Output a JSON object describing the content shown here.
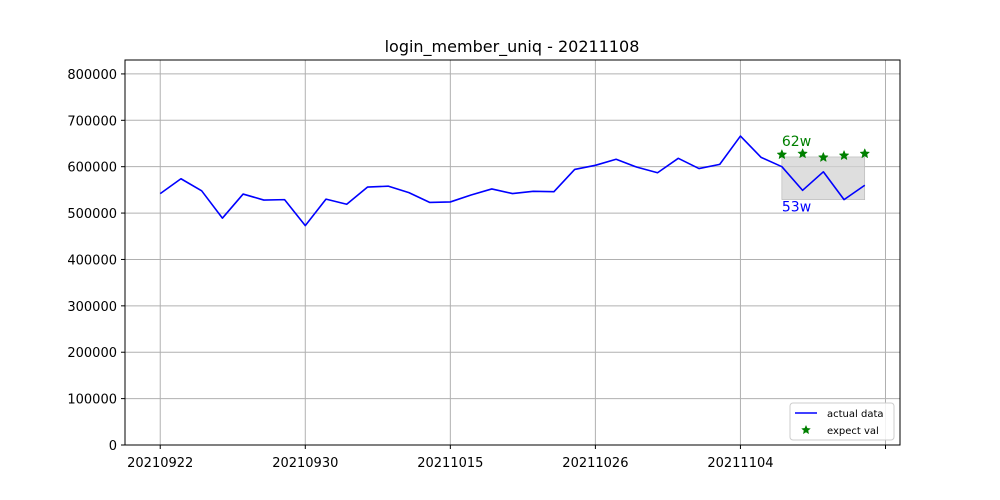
{
  "chart_data": {
    "type": "line",
    "title": "login_member_uniq - 20211108",
    "xlabel": "",
    "ylabel": "",
    "x_tick_labels": [
      "20210922",
      "20210930",
      "20211015",
      "20211026",
      "20211104",
      ""
    ],
    "x_tick_positions": [
      0,
      7,
      14,
      21,
      28,
      35
    ],
    "y_tick_labels": [
      "0",
      "100000",
      "200000",
      "300000",
      "400000",
      "500000",
      "600000",
      "700000",
      "800000"
    ],
    "ylim": [
      0,
      830000
    ],
    "xlim": [
      -1.7,
      35.7
    ],
    "grid": true,
    "legend_position": "lower right",
    "colors": {
      "actual": "#0000ff",
      "expect": "#008000",
      "band": "#d3d3d3",
      "grid": "#b0b0b0"
    },
    "series": [
      {
        "name": "actual data",
        "style": "line",
        "x": [
          0,
          1,
          2,
          3,
          4,
          5,
          6,
          7,
          8,
          9,
          10,
          11,
          12,
          13,
          14,
          15,
          16,
          17,
          18,
          19,
          20,
          21,
          22,
          23,
          24,
          25,
          26,
          27,
          28,
          29,
          30,
          31,
          32,
          33,
          34
        ],
        "values": [
          542000,
          574000,
          548000,
          489000,
          541000,
          528000,
          529000,
          473000,
          530000,
          519000,
          556000,
          558000,
          544000,
          523000,
          524000,
          539000,
          552000,
          542000,
          547000,
          546000,
          594000,
          603000,
          616000,
          599000,
          587000,
          618000,
          596000,
          605000,
          666000,
          620000,
          600000,
          549000,
          589000,
          529000,
          560000
        ]
      },
      {
        "name": "expect val",
        "style": "star",
        "x": [
          30,
          31,
          32,
          33,
          34
        ],
        "values": [
          626000,
          628000,
          620000,
          624000,
          628000
        ]
      }
    ],
    "band": {
      "x_start": 30,
      "x_end": 34,
      "y_low": 529000,
      "y_high": 621000
    },
    "annotations": [
      {
        "text": "62w",
        "x": 30,
        "y": 645000,
        "color": "#008000"
      },
      {
        "text": "53w",
        "x": 30,
        "y": 503000,
        "color": "#0000ff"
      }
    ]
  }
}
